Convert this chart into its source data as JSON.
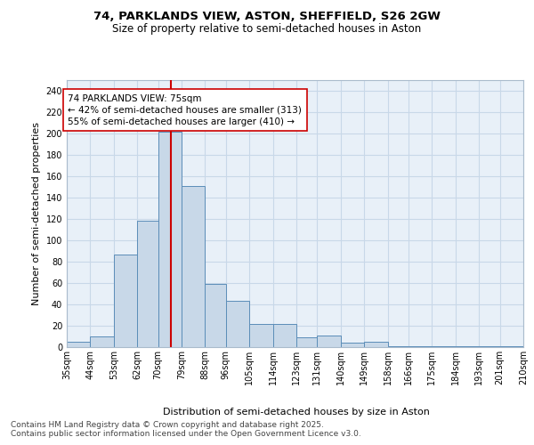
{
  "title_line1": "74, PARKLANDS VIEW, ASTON, SHEFFIELD, S26 2GW",
  "title_line2": "Size of property relative to semi-detached houses in Aston",
  "xlabel": "Distribution of semi-detached houses by size in Aston",
  "ylabel": "Number of semi-detached properties",
  "bin_edges": [
    35,
    44,
    53,
    62,
    70,
    79,
    88,
    96,
    105,
    114,
    123,
    131,
    140,
    149,
    158,
    166,
    175,
    184,
    193,
    201,
    210
  ],
  "bin_labels": [
    "35sqm",
    "44sqm",
    "53sqm",
    "62sqm",
    "70sqm",
    "79sqm",
    "88sqm",
    "96sqm",
    "105sqm",
    "114sqm",
    "123sqm",
    "131sqm",
    "140sqm",
    "149sqm",
    "158sqm",
    "166sqm",
    "175sqm",
    "184sqm",
    "193sqm",
    "201sqm",
    "210sqm"
  ],
  "counts": [
    5,
    10,
    87,
    118,
    202,
    151,
    59,
    43,
    22,
    22,
    9,
    11,
    4,
    5,
    1,
    1,
    1,
    1,
    1,
    1
  ],
  "bar_facecolor": "#c8d8e8",
  "bar_edgecolor": "#5b8db8",
  "property_size": 75,
  "vline_color": "#cc0000",
  "annotation_text": "74 PARKLANDS VIEW: 75sqm\n← 42% of semi-detached houses are smaller (313)\n55% of semi-detached houses are larger (410) →",
  "annotation_box_edgecolor": "#cc0000",
  "annotation_box_facecolor": "#ffffff",
  "ylim": [
    0,
    250
  ],
  "yticks": [
    0,
    20,
    40,
    60,
    80,
    100,
    120,
    140,
    160,
    180,
    200,
    220,
    240
  ],
  "grid_color": "#c8d8e8",
  "background_color": "#e8f0f8",
  "footer_text": "Contains HM Land Registry data © Crown copyright and database right 2025.\nContains public sector information licensed under the Open Government Licence v3.0.",
  "title_fontsize": 9.5,
  "subtitle_fontsize": 8.5,
  "axis_label_fontsize": 8,
  "tick_fontsize": 7,
  "annotation_fontsize": 7.5,
  "footer_fontsize": 6.5
}
